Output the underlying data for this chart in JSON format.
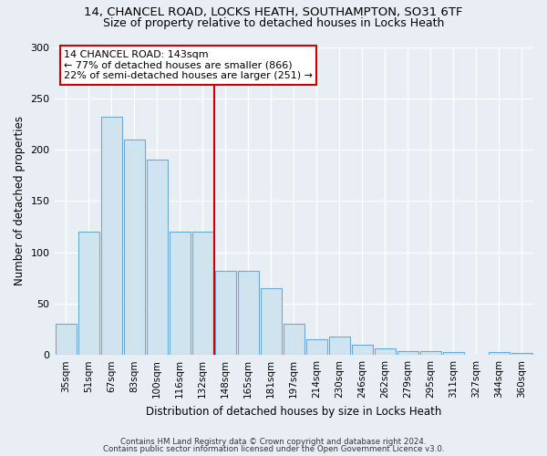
{
  "title_line1": "14, CHANCEL ROAD, LOCKS HEATH, SOUTHAMPTON, SO31 6TF",
  "title_line2": "Size of property relative to detached houses in Locks Heath",
  "xlabel": "Distribution of detached houses by size in Locks Heath",
  "ylabel": "Number of detached properties",
  "categories": [
    "35sqm",
    "51sqm",
    "67sqm",
    "83sqm",
    "100sqm",
    "116sqm",
    "132sqm",
    "148sqm",
    "165sqm",
    "181sqm",
    "197sqm",
    "214sqm",
    "230sqm",
    "246sqm",
    "262sqm",
    "279sqm",
    "295sqm",
    "311sqm",
    "327sqm",
    "344sqm",
    "360sqm"
  ],
  "values": [
    30,
    120,
    232,
    210,
    190,
    120,
    120,
    82,
    82,
    65,
    30,
    15,
    18,
    10,
    6,
    4,
    4,
    3,
    0,
    3,
    2
  ],
  "bar_color": "#d0e4f0",
  "bar_edge_color": "#6aaad4",
  "vline_color": "#cc0000",
  "annotation_text": "14 CHANCEL ROAD: 143sqm\n← 77% of detached houses are smaller (866)\n22% of semi-detached houses are larger (251) →",
  "annotation_box_color": "#ffffff",
  "annotation_box_edge": "#cc0000",
  "ylim": [
    0,
    300
  ],
  "yticks": [
    0,
    50,
    100,
    150,
    200,
    250,
    300
  ],
  "footer_line1": "Contains HM Land Registry data © Crown copyright and database right 2024.",
  "footer_line2": "Contains public sector information licensed under the Open Government Licence v3.0.",
  "bg_color": "#e8eef4",
  "grid_color": "#ffffff"
}
